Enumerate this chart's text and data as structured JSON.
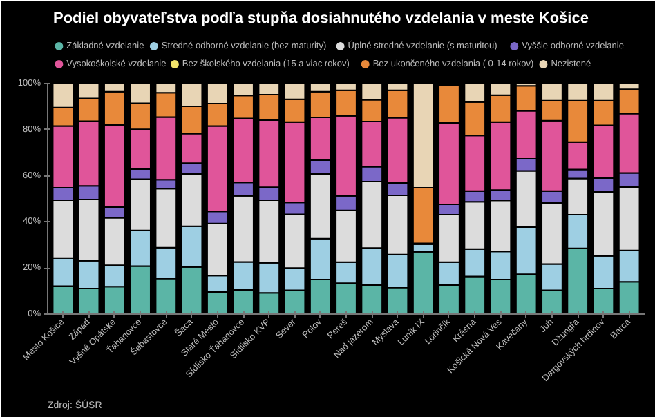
{
  "chart_data": {
    "type": "bar",
    "stacked": true,
    "title": "Podiel obyvateľstva podľa stupňa dosiahnutého vzdelania v meste Košice",
    "annotations": [
      "Zdroj: ŠÚSR"
    ],
    "categories": [
      "Mesto Košice",
      "Západ",
      "Vyšné Opátske",
      "Ťahanovce",
      "Šebastovce",
      "Šaca",
      "Staré Mesto",
      "Sídlisko Ťahanovce",
      "Sídlisko KVP",
      "Sever",
      "Polov",
      "Pereš",
      "Nad jazerom",
      "Myslava",
      "Luník IX",
      "Lorinčík",
      "Krásna",
      "Košická Nová Ves",
      "Kavečany",
      "Juh",
      "Džungľa",
      "Dargovských hrdinov",
      "Barca"
    ],
    "ylim": [
      0,
      100
    ],
    "yticks": [
      {
        "value": 0,
        "label": "0%"
      },
      {
        "value": 20,
        "label": "20%"
      },
      {
        "value": 40,
        "label": "40%"
      },
      {
        "value": 60,
        "label": "60%"
      },
      {
        "value": 80,
        "label": "80%"
      },
      {
        "value": 100,
        "label": "100%"
      }
    ],
    "grid": false,
    "legend": "top",
    "series": [
      {
        "name": "Základné vzdelanie",
        "color": "#5bb5a6",
        "values": [
          12.1,
          11.1,
          11.9,
          20.8,
          15.4,
          20.4,
          9.6,
          10.5,
          9.2,
          10.3,
          15.0,
          13.4,
          12.6,
          11.5,
          27.0,
          12.6,
          16.3,
          15.0,
          17.3,
          10.3,
          28.5,
          11.1,
          14.0
        ]
      },
      {
        "name": "Stredné odborné vzdelanie (bez maturity)",
        "color": "#9ecfe3",
        "values": [
          12.2,
          12.0,
          9.3,
          15.5,
          13.4,
          17.7,
          7.1,
          12.1,
          13.0,
          9.7,
          17.7,
          9.1,
          16.1,
          14.3,
          3.3,
          9.9,
          11.9,
          12.2,
          20.4,
          11.4,
          14.6,
          14.1,
          13.6
        ]
      },
      {
        "name": "Úplné stredné vzdelanie (s maturitou)",
        "color": "#dcdcdc",
        "values": [
          25.1,
          26.6,
          20.6,
          22.2,
          25.6,
          22.7,
          22.6,
          28.7,
          27.2,
          23.3,
          28.1,
          22.5,
          28.8,
          25.7,
          null,
          20.6,
          20.5,
          22.1,
          24.4,
          26.5,
          15.7,
          27.8,
          27.5
        ]
      },
      {
        "name": "Vyššie odborné vzdelanie",
        "color": "#7b68c8",
        "values": [
          5.4,
          5.9,
          4.6,
          4.4,
          3.9,
          4.7,
          5.2,
          5.8,
          5.6,
          5.1,
          6.0,
          6.3,
          6.4,
          5.4,
          null,
          4.5,
          4.7,
          4.5,
          5.3,
          5.2,
          3.9,
          6.0,
          6.1
        ]
      },
      {
        "name": "Vysokoškolské vzdelanie",
        "color": "#e0559a",
        "values": [
          26.8,
          28.1,
          35.6,
          17.3,
          27.2,
          12.8,
          37.1,
          27.8,
          29.1,
          34.9,
          18.5,
          34.7,
          19.6,
          28.3,
          0.4,
          35.3,
          24.1,
          29.5,
          20.8,
          30.5,
          11.9,
          22.9,
          25.8
        ]
      },
      {
        "name": "Bez školského vzdelania (15 a viac rokov)",
        "color": "#f2e46b",
        "values": [
          0,
          0,
          0,
          0,
          0,
          0,
          0,
          0,
          0,
          0,
          0,
          0,
          0,
          0,
          0,
          0,
          0,
          0,
          0,
          0,
          0,
          0,
          0
        ]
      },
      {
        "name": "Bez ukončeného vzdelania ( 0-14 rokov)",
        "color": "#e8893a",
        "values": [
          8.0,
          9.9,
          14.5,
          11.3,
          10.5,
          11.8,
          9.7,
          9.9,
          11.1,
          9.9,
          11.2,
          11.1,
          9.5,
          11.9,
          24.1,
          16.5,
          14.5,
          11.7,
          10.8,
          8.7,
          18.0,
          10.7,
          10.5
        ]
      },
      {
        "name": "Nezistené",
        "color": "#e8d5b5",
        "values": [
          10.4,
          6.4,
          3.5,
          8.5,
          4.0,
          9.9,
          8.7,
          5.2,
          4.8,
          6.8,
          3.5,
          2.9,
          7.0,
          2.9,
          45.2,
          null,
          8.0,
          5.0,
          1.0,
          7.4,
          7.4,
          7.4,
          2.5
        ]
      }
    ]
  }
}
